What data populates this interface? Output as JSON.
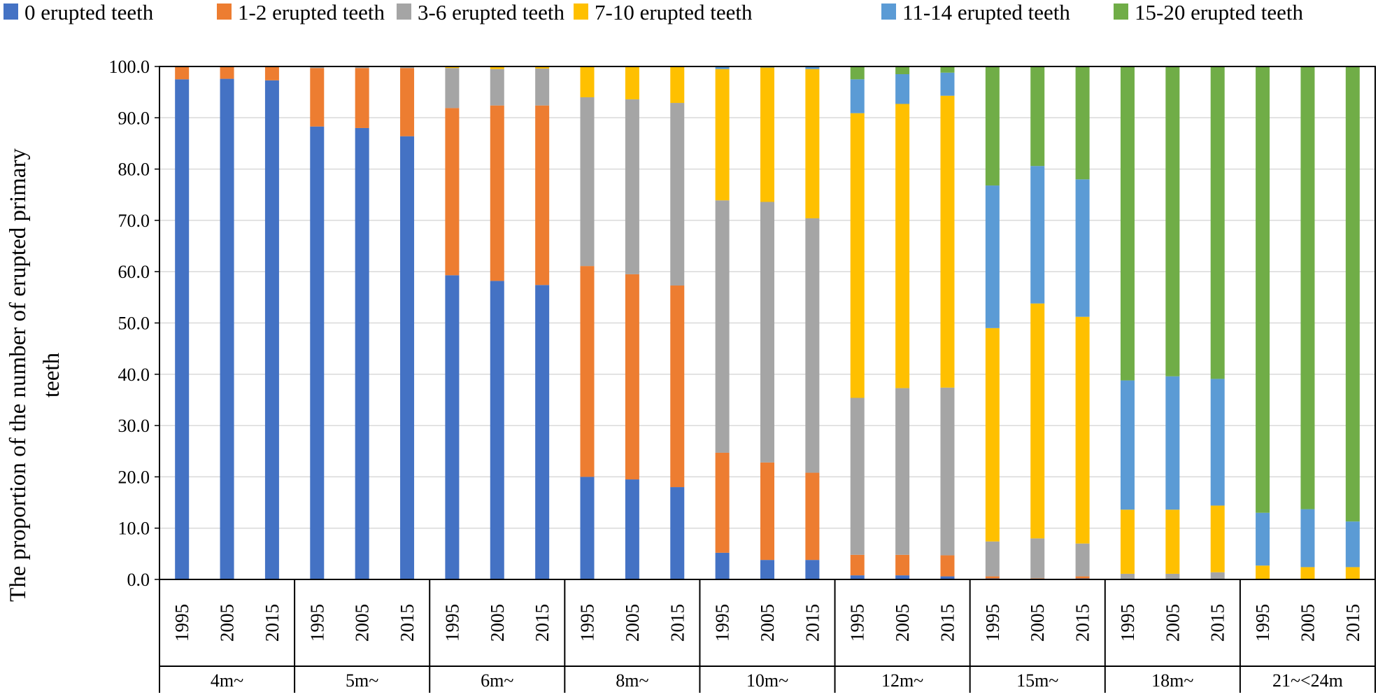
{
  "chart_data": {
    "type": "bar",
    "stacked": true,
    "ylabel_lines": [
      "The proportion of the number of erupted primary",
      "teeth"
    ],
    "ylim": [
      0,
      100
    ],
    "y_ticks": [
      "0.0",
      "10.0",
      "20.0",
      "30.0",
      "40.0",
      "50.0",
      "60.0",
      "70.0",
      "80.0",
      "90.0",
      "100.0"
    ],
    "grid": true,
    "legend_position": "top",
    "groups": [
      {
        "label": "4m~",
        "years": [
          "1995",
          "2005",
          "2015"
        ]
      },
      {
        "label": "5m~",
        "years": [
          "1995",
          "2005",
          "2015"
        ]
      },
      {
        "label": "6m~",
        "years": [
          "1995",
          "2005",
          "2015"
        ]
      },
      {
        "label": "8m~",
        "years": [
          "1995",
          "2005",
          "2015"
        ]
      },
      {
        "label": "10m~",
        "years": [
          "1995",
          "2005",
          "2015"
        ]
      },
      {
        "label": "12m~",
        "years": [
          "1995",
          "2005",
          "2015"
        ]
      },
      {
        "label": "15m~",
        "years": [
          "1995",
          "2005",
          "2015"
        ]
      },
      {
        "label": "18m~",
        "years": [
          "1995",
          "2005",
          "2015"
        ]
      },
      {
        "label": "21~<24m",
        "years": [
          "1995",
          "2005",
          "2015"
        ]
      }
    ],
    "series": [
      {
        "name": "0 erupted teeth",
        "color": "#4472C4",
        "values": [
          97.5,
          97.6,
          97.3,
          88.3,
          88.0,
          86.4,
          59.3,
          58.2,
          57.4,
          20.0,
          19.5,
          18.0,
          5.2,
          3.8,
          3.8,
          0.8,
          0.8,
          0.6,
          0.2,
          0.1,
          0.2,
          0.0,
          0.0,
          0.0,
          0.0,
          0.0,
          0.0
        ]
      },
      {
        "name": "1-2 erupted teeth",
        "color": "#ED7D31",
        "values": [
          2.5,
          2.4,
          2.7,
          11.4,
          11.7,
          13.3,
          32.6,
          34.2,
          35.0,
          41.1,
          40.0,
          39.3,
          19.5,
          19.0,
          17.0,
          4.0,
          4.0,
          4.1,
          0.4,
          0.1,
          0.4,
          0.0,
          0.0,
          0.0,
          0.0,
          0.0,
          0.0
        ]
      },
      {
        "name": "3-6 erupted teeth",
        "color": "#A5A5A5",
        "values": [
          0.0,
          0.0,
          0.0,
          0.3,
          0.3,
          0.3,
          7.8,
          7.1,
          7.2,
          32.9,
          34.1,
          35.6,
          49.2,
          50.8,
          49.6,
          30.6,
          32.5,
          32.7,
          6.8,
          7.8,
          6.4,
          1.1,
          1.1,
          1.4,
          0.0,
          0.0,
          0.0
        ]
      },
      {
        "name": "7-10 erupted teeth",
        "color": "#FFC000",
        "values": [
          0.0,
          0.0,
          0.0,
          0.0,
          0.0,
          0.0,
          0.3,
          0.5,
          0.3,
          6.0,
          6.3,
          7.1,
          25.6,
          26.2,
          29.1,
          55.5,
          55.4,
          56.9,
          41.6,
          45.8,
          44.2,
          12.5,
          12.5,
          13.0,
          2.7,
          2.4,
          2.4
        ]
      },
      {
        "name": "11-14 erupted teeth",
        "color": "#5B9BD5",
        "values": [
          0.0,
          0.0,
          0.0,
          0.0,
          0.0,
          0.0,
          0.0,
          0.0,
          0.0,
          0.0,
          0.0,
          0.0,
          0.5,
          0.2,
          0.5,
          6.6,
          5.8,
          4.5,
          27.8,
          26.8,
          26.8,
          25.2,
          26.0,
          24.7,
          10.3,
          11.3,
          8.9
        ]
      },
      {
        "name": "15-20 erupted teeth",
        "color": "#70AD47",
        "values": [
          0.0,
          0.0,
          0.0,
          0.0,
          0.0,
          0.0,
          0.0,
          0.0,
          0.0,
          0.0,
          0.0,
          0.0,
          0.0,
          0.0,
          0.0,
          2.5,
          1.5,
          1.2,
          23.2,
          19.4,
          22.0,
          61.2,
          60.4,
          60.9,
          87.0,
          86.3,
          88.7
        ]
      }
    ]
  }
}
